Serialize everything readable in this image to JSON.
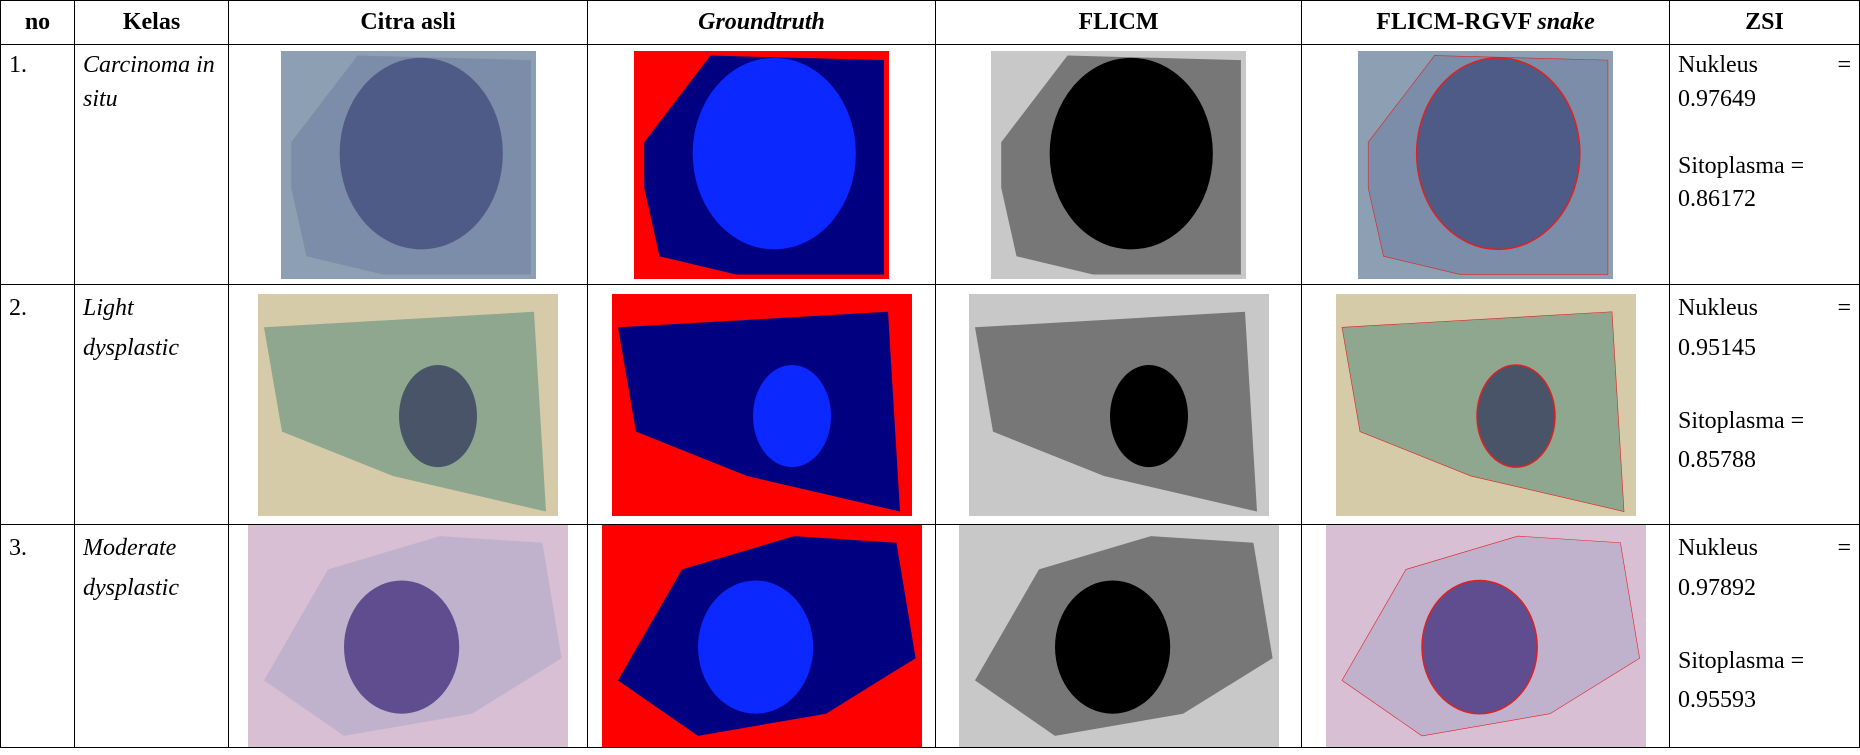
{
  "header": [
    "no",
    "Kelas",
    "Citra asli",
    "Groundtruth",
    "FLICM",
    [
      "FLICM-RGVF",
      "snake"
    ],
    "ZSI"
  ],
  "rows": [
    {
      "no": "1.",
      "kelas": "Carcinoma in situ",
      "zsi": {
        "nukleus_label": [
          "Nukleus",
          "="
        ],
        "nukleus": "0.97649",
        "sitoplasma_label": "Sitoplasma =",
        "sitoplasma": "0.86172"
      }
    },
    {
      "no": "2.",
      "kelas": "Light dysplastic",
      "zsi": {
        "nukleus_label": [
          "Nukleus",
          "="
        ],
        "nukleus": "0.95145",
        "sitoplasma_label": "Sitoplasma =",
        "sitoplasma": "0.85788"
      }
    },
    {
      "no": "3.",
      "kelas": "Moderate dysplastic",
      "zsi": {
        "nukleus_label": [
          "Nukleus",
          "="
        ],
        "nukleus": "0.97892",
        "sitoplasma_label": "Sitoplasma =",
        "sitoplasma": "0.95593"
      }
    }
  ]
}
